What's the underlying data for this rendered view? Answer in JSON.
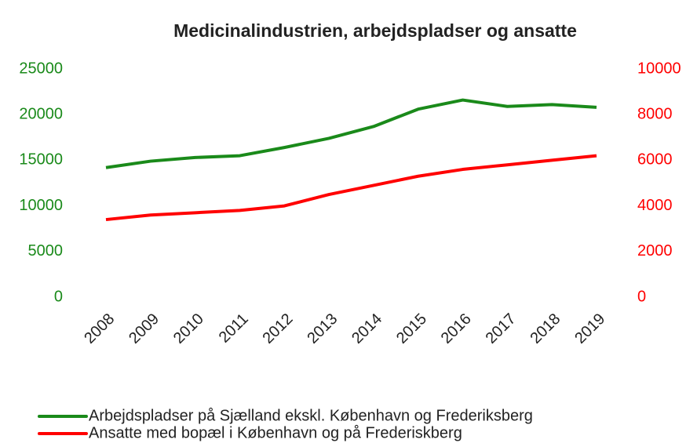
{
  "chart_data": {
    "type": "line",
    "title": "Medicinalindustrien, arbejdspladser og ansatte",
    "categories": [
      "2008",
      "2009",
      "2010",
      "2011",
      "2012",
      "2013",
      "2014",
      "2015",
      "2016",
      "2017",
      "2018",
      "2019"
    ],
    "series": [
      {
        "name": "Arbejdspladser på Sjælland ekskl. København og Frederiksberg",
        "color": "#1a8a1a",
        "axis": "y",
        "values": [
          14200,
          14900,
          15300,
          15500,
          16400,
          17400,
          18700,
          20600,
          21600,
          20900,
          21100,
          20800
        ]
      },
      {
        "name": "Ansatte med bopæl i København og på Frederiskberg",
        "color": "#ff0000",
        "axis": "y2",
        "values": [
          3400,
          3600,
          3700,
          3800,
          4000,
          4500,
          4900,
          5300,
          5600,
          5800,
          6000,
          6200
        ]
      }
    ],
    "ylim": [
      0,
      25000
    ],
    "yticks": [
      0,
      5000,
      10000,
      15000,
      20000,
      25000
    ],
    "y2lim": [
      0,
      10000
    ],
    "y2ticks": [
      0,
      2000,
      4000,
      6000,
      8000,
      10000
    ],
    "grid": false,
    "legend": "bottom"
  }
}
